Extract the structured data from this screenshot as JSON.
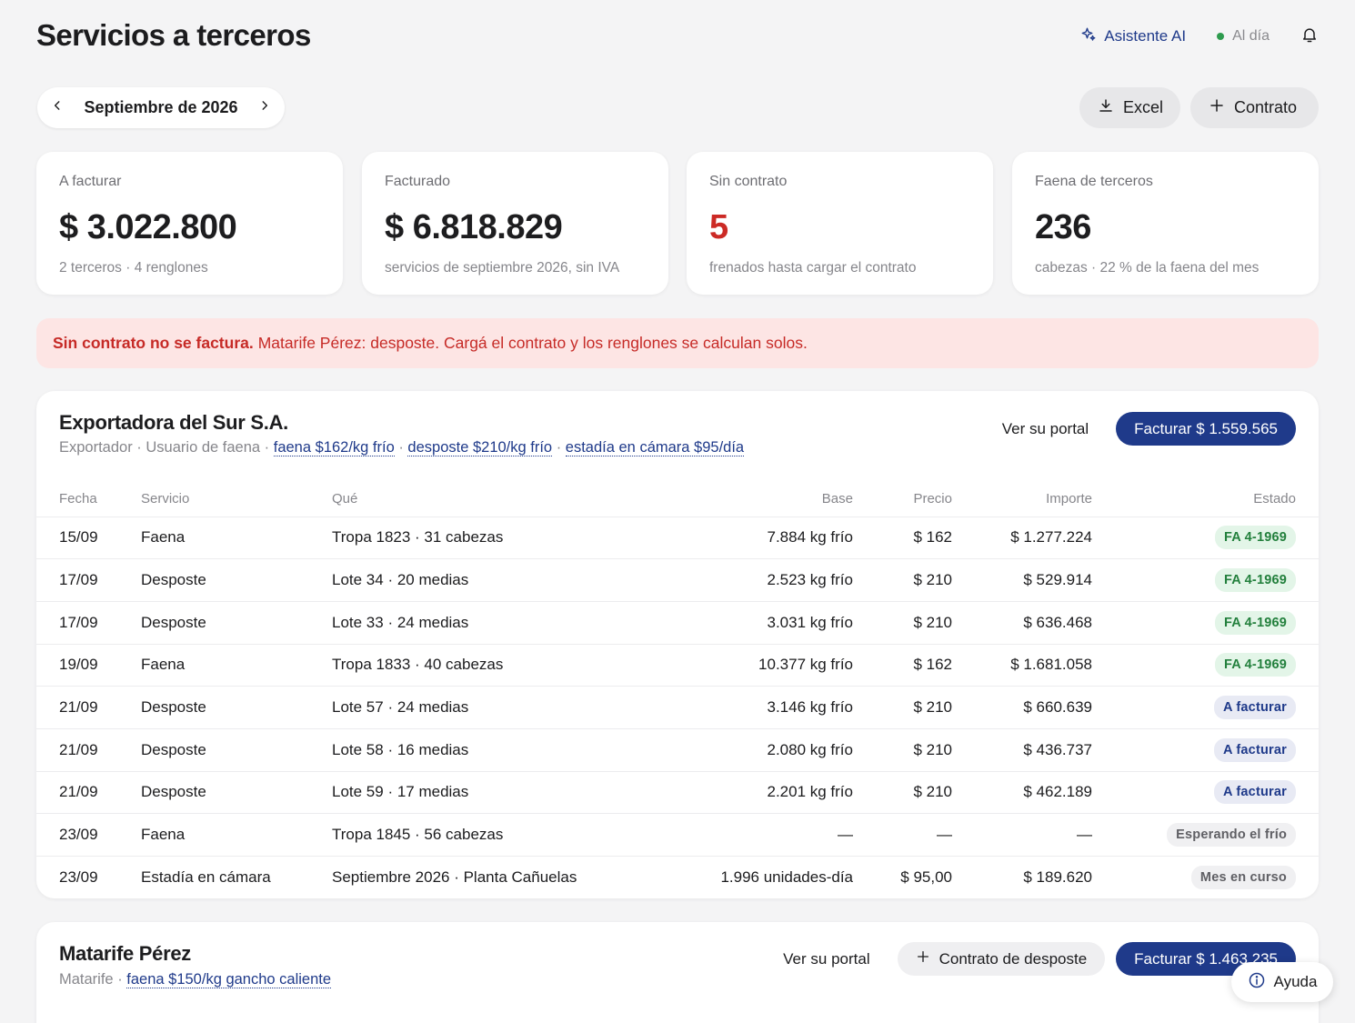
{
  "page": {
    "title": "Servicios a terceros"
  },
  "topbar": {
    "ai_label": "Asistente AI",
    "status_label": "Al día"
  },
  "month_nav": {
    "label": "Septiembre de 2026"
  },
  "actions": {
    "excel_label": "Excel",
    "contract_label": "Contrato"
  },
  "kpis": [
    {
      "label": "A facturar",
      "value": "$ 3.022.800",
      "sub": "2 terceros · 4 renglones"
    },
    {
      "label": "Facturado",
      "value": "$ 6.818.829",
      "sub": "servicios de septiembre 2026, sin IVA"
    },
    {
      "label": "Sin contrato",
      "value": "5",
      "sub": "frenados hasta cargar el contrato"
    },
    {
      "label": "Faena de terceros",
      "value": "236",
      "sub": "cabezas · 22 % de la faena del mes"
    }
  ],
  "alert": {
    "bold": "Sin contrato no se factura.",
    "text": "Matarife Pérez: desposte. Cargá el contrato y los renglones se calculan solos."
  },
  "clients": [
    {
      "name": "Exportadora del Sur S.A.",
      "type": "Exportador",
      "role": "Usuario de faena",
      "rates": [
        "faena $162/kg frío",
        "desposte $210/kg frío",
        "estadía en cámara $95/día"
      ],
      "portal_label": "Ver su portal",
      "bill_label": "Facturar $ 1.559.565",
      "columns": [
        "Fecha",
        "Servicio",
        "Qué",
        "Base",
        "Precio",
        "Importe",
        "Estado"
      ],
      "rows": [
        {
          "fecha": "15/09",
          "servicio": "Faena",
          "que": "Tropa 1823 · 31 cabezas",
          "base": "7.884 kg frío",
          "precio": "$ 162",
          "importe": "$ 1.277.224",
          "estado": "FA 4-1969",
          "tone": "green"
        },
        {
          "fecha": "17/09",
          "servicio": "Desposte",
          "que": "Lote 34 · 20 medias",
          "base": "2.523 kg frío",
          "precio": "$ 210",
          "importe": "$ 529.914",
          "estado": "FA 4-1969",
          "tone": "green"
        },
        {
          "fecha": "17/09",
          "servicio": "Desposte",
          "que": "Lote 33 · 24 medias",
          "base": "3.031 kg frío",
          "precio": "$ 210",
          "importe": "$ 636.468",
          "estado": "FA 4-1969",
          "tone": "green"
        },
        {
          "fecha": "19/09",
          "servicio": "Faena",
          "que": "Tropa 1833 · 40 cabezas",
          "base": "10.377 kg frío",
          "precio": "$ 162",
          "importe": "$ 1.681.058",
          "estado": "FA 4-1969",
          "tone": "green"
        },
        {
          "fecha": "21/09",
          "servicio": "Desposte",
          "que": "Lote 57 · 24 medias",
          "base": "3.146 kg frío",
          "precio": "$ 210",
          "importe": "$ 660.639",
          "estado": "A facturar",
          "tone": "blue"
        },
        {
          "fecha": "21/09",
          "servicio": "Desposte",
          "que": "Lote 58 · 16 medias",
          "base": "2.080 kg frío",
          "precio": "$ 210",
          "importe": "$ 436.737",
          "estado": "A facturar",
          "tone": "blue"
        },
        {
          "fecha": "21/09",
          "servicio": "Desposte",
          "que": "Lote 59 · 17 medias",
          "base": "2.201 kg frío",
          "precio": "$ 210",
          "importe": "$ 462.189",
          "estado": "A facturar",
          "tone": "blue"
        },
        {
          "fecha": "23/09",
          "servicio": "Faena",
          "que": "Tropa 1845 · 56 cabezas",
          "base": "—",
          "precio": "—",
          "importe": "—",
          "estado": "Esperando el frío",
          "tone": "gray"
        },
        {
          "fecha": "23/09",
          "servicio": "Estadía en cámara",
          "que": "Septiembre 2026 · Planta Cañuelas",
          "base": "1.996 unidades-día",
          "precio": "$ 95,00",
          "importe": "$ 189.620",
          "estado": "Mes en curso",
          "tone": "gray"
        }
      ]
    },
    {
      "name": "Matarife Pérez",
      "type": "Matarife",
      "rates": [
        "faena $150/kg gancho caliente"
      ],
      "portal_label": "Ver su portal",
      "contract_label": "Contrato de desposte",
      "bill_label": "Facturar $ 1.463.235"
    }
  ],
  "help": {
    "label": "Ayuda"
  },
  "colors": {
    "primary": "#1f3a8a",
    "danger": "#cc2a25",
    "ok": "#23803d",
    "background": "#f4f4f5"
  }
}
